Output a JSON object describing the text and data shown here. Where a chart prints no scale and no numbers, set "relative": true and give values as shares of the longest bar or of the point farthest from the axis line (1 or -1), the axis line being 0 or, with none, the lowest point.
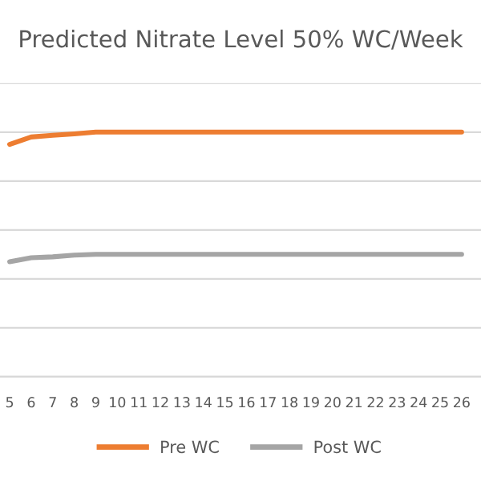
{
  "chart_data": {
    "type": "line",
    "title": "Predicted Nitrate Level 50% WC/Week",
    "categories": [
      "5",
      "6",
      "7",
      "8",
      "9",
      "10",
      "11",
      "12",
      "13",
      "14",
      "15",
      "16",
      "17",
      "18",
      "19",
      "20",
      "21",
      "22",
      "23",
      "24",
      "25",
      "26"
    ],
    "relative": true,
    "grid": "y",
    "legend": "bottom",
    "marker": "none",
    "line_style": "solid",
    "series": [
      {
        "name": "Pre WC",
        "color": "#ed7d31",
        "values": [
          0.95,
          0.98,
          0.987,
          0.993,
          1,
          1,
          1,
          1,
          1,
          1,
          1,
          1,
          1,
          1,
          1,
          1,
          1,
          1,
          1,
          1,
          1,
          1
        ]
      },
      {
        "name": "Post WC",
        "color": "#a5a5a5",
        "values": [
          0.47,
          0.486,
          0.49,
          0.497,
          0.5,
          0.5,
          0.5,
          0.5,
          0.5,
          0.5,
          0.5,
          0.5,
          0.5,
          0.5,
          0.5,
          0.5,
          0.5,
          0.5,
          0.5,
          0.5,
          0.5,
          0.5
        ]
      }
    ]
  }
}
